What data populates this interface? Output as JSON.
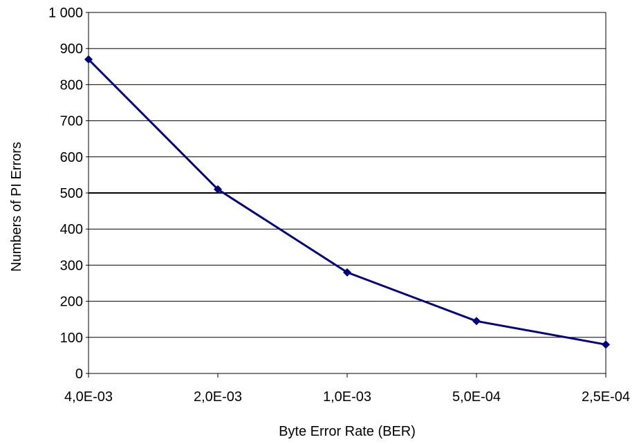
{
  "chart_data": {
    "type": "line",
    "title": "",
    "xlabel": "Byte Error Rate (BER)",
    "ylabel": "Numbers of PI Errors",
    "categories": [
      "4,0E-03",
      "2,0E-03",
      "1,0E-03",
      "5,0E-04",
      "2,5E-04"
    ],
    "x": [
      0.004,
      0.002,
      0.001,
      0.0005,
      0.00025
    ],
    "series": [
      {
        "values": [
          870,
          510,
          280,
          145,
          80
        ]
      }
    ],
    "ylim": [
      0,
      1000
    ],
    "yticks": [
      0,
      100,
      200,
      300,
      400,
      500,
      600,
      700,
      800,
      900,
      1000
    ],
    "ytick_labels": [
      "0",
      "100",
      "200",
      "300",
      "400",
      "500",
      "600",
      "700",
      "800",
      "900",
      "1 000"
    ],
    "grid": true,
    "legend": "none",
    "colors": {
      "line": "#000080",
      "grid": "#000000",
      "axis": "#000000"
    }
  }
}
